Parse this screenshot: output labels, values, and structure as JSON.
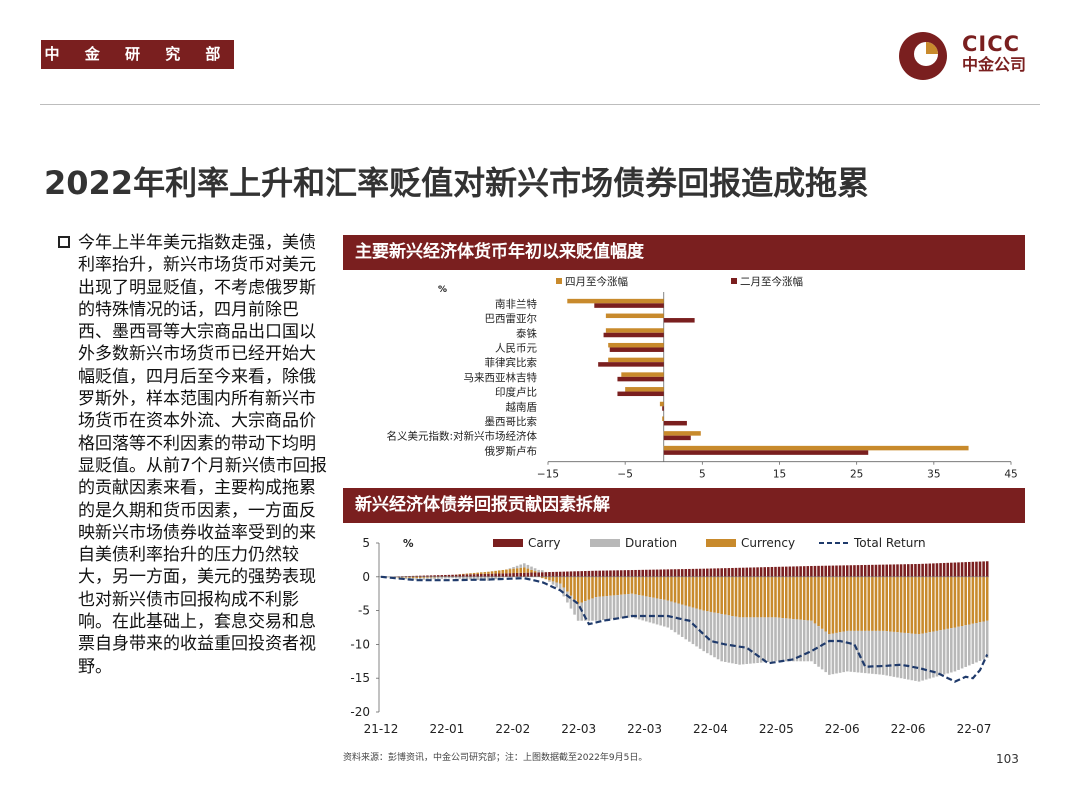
{
  "header": {
    "dept": "中 金 研 究 部",
    "logo_en": "CICC",
    "logo_cn": "中金公司"
  },
  "slide": {
    "title": "2022年利率上升和汇率贬值对新兴市场债券回报造成拖累",
    "body": "今年上半年美元指数走强，美债利率抬升，新兴市场货币对美元出现了明显贬值，不考虑俄罗斯的特殊情况的话，四月前除巴西、墨西哥等大宗商品出口国以外多数新兴市场货币已经开始大幅贬值，四月后至今来看，除俄罗斯外，样本范围内所有新兴市场货币在资本外流、大宗商品价格回落等不利因素的带动下均明显贬值。从前7个月新兴债市回报的贡献因素来看，主要构成拖累的是久期和货币因素，一方面反映新兴市场债券收益率受到的来自美债利率抬升的压力仍然较大，另一方面，美元的强势表现也对新兴债市回报构成不利影响。在此基础上，套息交易和息票自身带来的收益重回投资者视野。",
    "source": "资料来源：彭博资讯，中金公司研究部；注：上图数据截至2022年9月5日。",
    "page_number": "103"
  },
  "colors": {
    "brand": "#7a1f1f",
    "orange": "#c88a2c",
    "grey": "#b8b8b8",
    "navy": "#1f3a6b"
  },
  "chart_data": [
    {
      "type": "bar",
      "orientation": "horizontal",
      "title": "主要新兴经济体货币年初以来贬值幅度",
      "unit": "%",
      "categories": [
        "南非兰特",
        "巴西雷亚尔",
        "泰铢",
        "人民币元",
        "菲律宾比索",
        "马来西亚林吉特",
        "印度卢比",
        "越南盾",
        "墨西哥比索",
        "名义美元指数:对新兴市场经济体",
        "俄罗斯卢布"
      ],
      "series": [
        {
          "name": "四月至今涨幅",
          "color": "#c88a2c",
          "values": [
            -12.5,
            -7.5,
            -7.5,
            -7.2,
            -7.2,
            -5.5,
            -5.0,
            -0.5,
            -0.2,
            4.8,
            39.5
          ]
        },
        {
          "name": "二月至今涨幅",
          "color": "#7a1f1f",
          "values": [
            -9.0,
            4.0,
            -7.8,
            -7.0,
            -8.5,
            -6.0,
            -6.0,
            -0.2,
            3.0,
            3.5,
            26.5
          ]
        }
      ],
      "xlim": [
        -15,
        45
      ],
      "xticks": [
        -15,
        -5,
        5,
        15,
        25,
        35,
        45
      ]
    },
    {
      "type": "bar+line",
      "title": "新兴经济体债券回报贡献因素拆解",
      "unit": "%",
      "ylim": [
        -20,
        5
      ],
      "yticks": [
        5,
        0,
        -5,
        -10,
        -15,
        -20
      ],
      "xticks": [
        "21-12",
        "22-01",
        "22-02",
        "22-03",
        "22-03",
        "22-04",
        "22-05",
        "22-06",
        "22-06",
        "22-07"
      ],
      "legend": [
        "Carry",
        "Duration",
        "Currency",
        "Total Return"
      ],
      "n_periods": 170,
      "series": [
        {
          "name": "Carry",
          "color": "#7a1f1f",
          "anchors": [
            [
              0,
              0
            ],
            [
              20,
              0.3
            ],
            [
              40,
              0.6
            ],
            [
              60,
              0.9
            ],
            [
              90,
              1.2
            ],
            [
              120,
              1.6
            ],
            [
              150,
              1.9
            ],
            [
              169,
              2.3
            ]
          ]
        },
        {
          "name": "Duration",
          "color": "#b8b8b8",
          "anchors": [
            [
              0,
              0
            ],
            [
              10,
              -0.3
            ],
            [
              20,
              -0.2
            ],
            [
              30,
              -0.6
            ],
            [
              40,
              0.6
            ],
            [
              45,
              0.3
            ],
            [
              50,
              -1
            ],
            [
              55,
              -2.5
            ],
            [
              60,
              -3.5
            ],
            [
              70,
              -3.5
            ],
            [
              80,
              -4
            ],
            [
              90,
              -6
            ],
            [
              95,
              -7
            ],
            [
              100,
              -7
            ],
            [
              110,
              -6.5
            ],
            [
              120,
              -6
            ],
            [
              130,
              -6
            ],
            [
              140,
              -6.5
            ],
            [
              150,
              -7
            ],
            [
              160,
              -6.5
            ],
            [
              169,
              -5.5
            ]
          ]
        },
        {
          "name": "Currency",
          "color": "#c88a2c",
          "anchors": [
            [
              0,
              0
            ],
            [
              10,
              -0.2
            ],
            [
              20,
              0
            ],
            [
              30,
              0.3
            ],
            [
              40,
              0.8
            ],
            [
              45,
              -0.2
            ],
            [
              50,
              -1
            ],
            [
              55,
              -4
            ],
            [
              60,
              -3
            ],
            [
              70,
              -2.5
            ],
            [
              80,
              -3.5
            ],
            [
              90,
              -5
            ],
            [
              100,
              -6
            ],
            [
              110,
              -6
            ],
            [
              120,
              -6.5
            ],
            [
              125,
              -8.5
            ],
            [
              130,
              -8
            ],
            [
              140,
              -8
            ],
            [
              150,
              -8.5
            ],
            [
              160,
              -7.5
            ],
            [
              169,
              -6.5
            ]
          ]
        },
        {
          "name": "Total Return",
          "color": "#1f3a6b",
          "style": "dashed",
          "anchors": [
            [
              0,
              0
            ],
            [
              10,
              -0.5
            ],
            [
              20,
              -0.5
            ],
            [
              30,
              -0.4
            ],
            [
              40,
              -0.2
            ],
            [
              45,
              -0.8
            ],
            [
              50,
              -2
            ],
            [
              55,
              -4
            ],
            [
              58,
              -7
            ],
            [
              62,
              -6.5
            ],
            [
              70,
              -5.8
            ],
            [
              80,
              -5.8
            ],
            [
              86,
              -6.5
            ],
            [
              92,
              -9.5
            ],
            [
              96,
              -10
            ],
            [
              102,
              -10.5
            ],
            [
              108,
              -12.8
            ],
            [
              115,
              -12.2
            ],
            [
              120,
              -11
            ],
            [
              125,
              -9.5
            ],
            [
              128,
              -9.5
            ],
            [
              132,
              -10
            ],
            [
              135,
              -13.3
            ],
            [
              140,
              -13.2
            ],
            [
              145,
              -13
            ],
            [
              150,
              -13.5
            ],
            [
              155,
              -14.2
            ],
            [
              160,
              -15.5
            ],
            [
              163,
              -14.8
            ],
            [
              165,
              -15
            ],
            [
              167,
              -13.8
            ],
            [
              169,
              -11.5
            ]
          ]
        }
      ]
    }
  ]
}
